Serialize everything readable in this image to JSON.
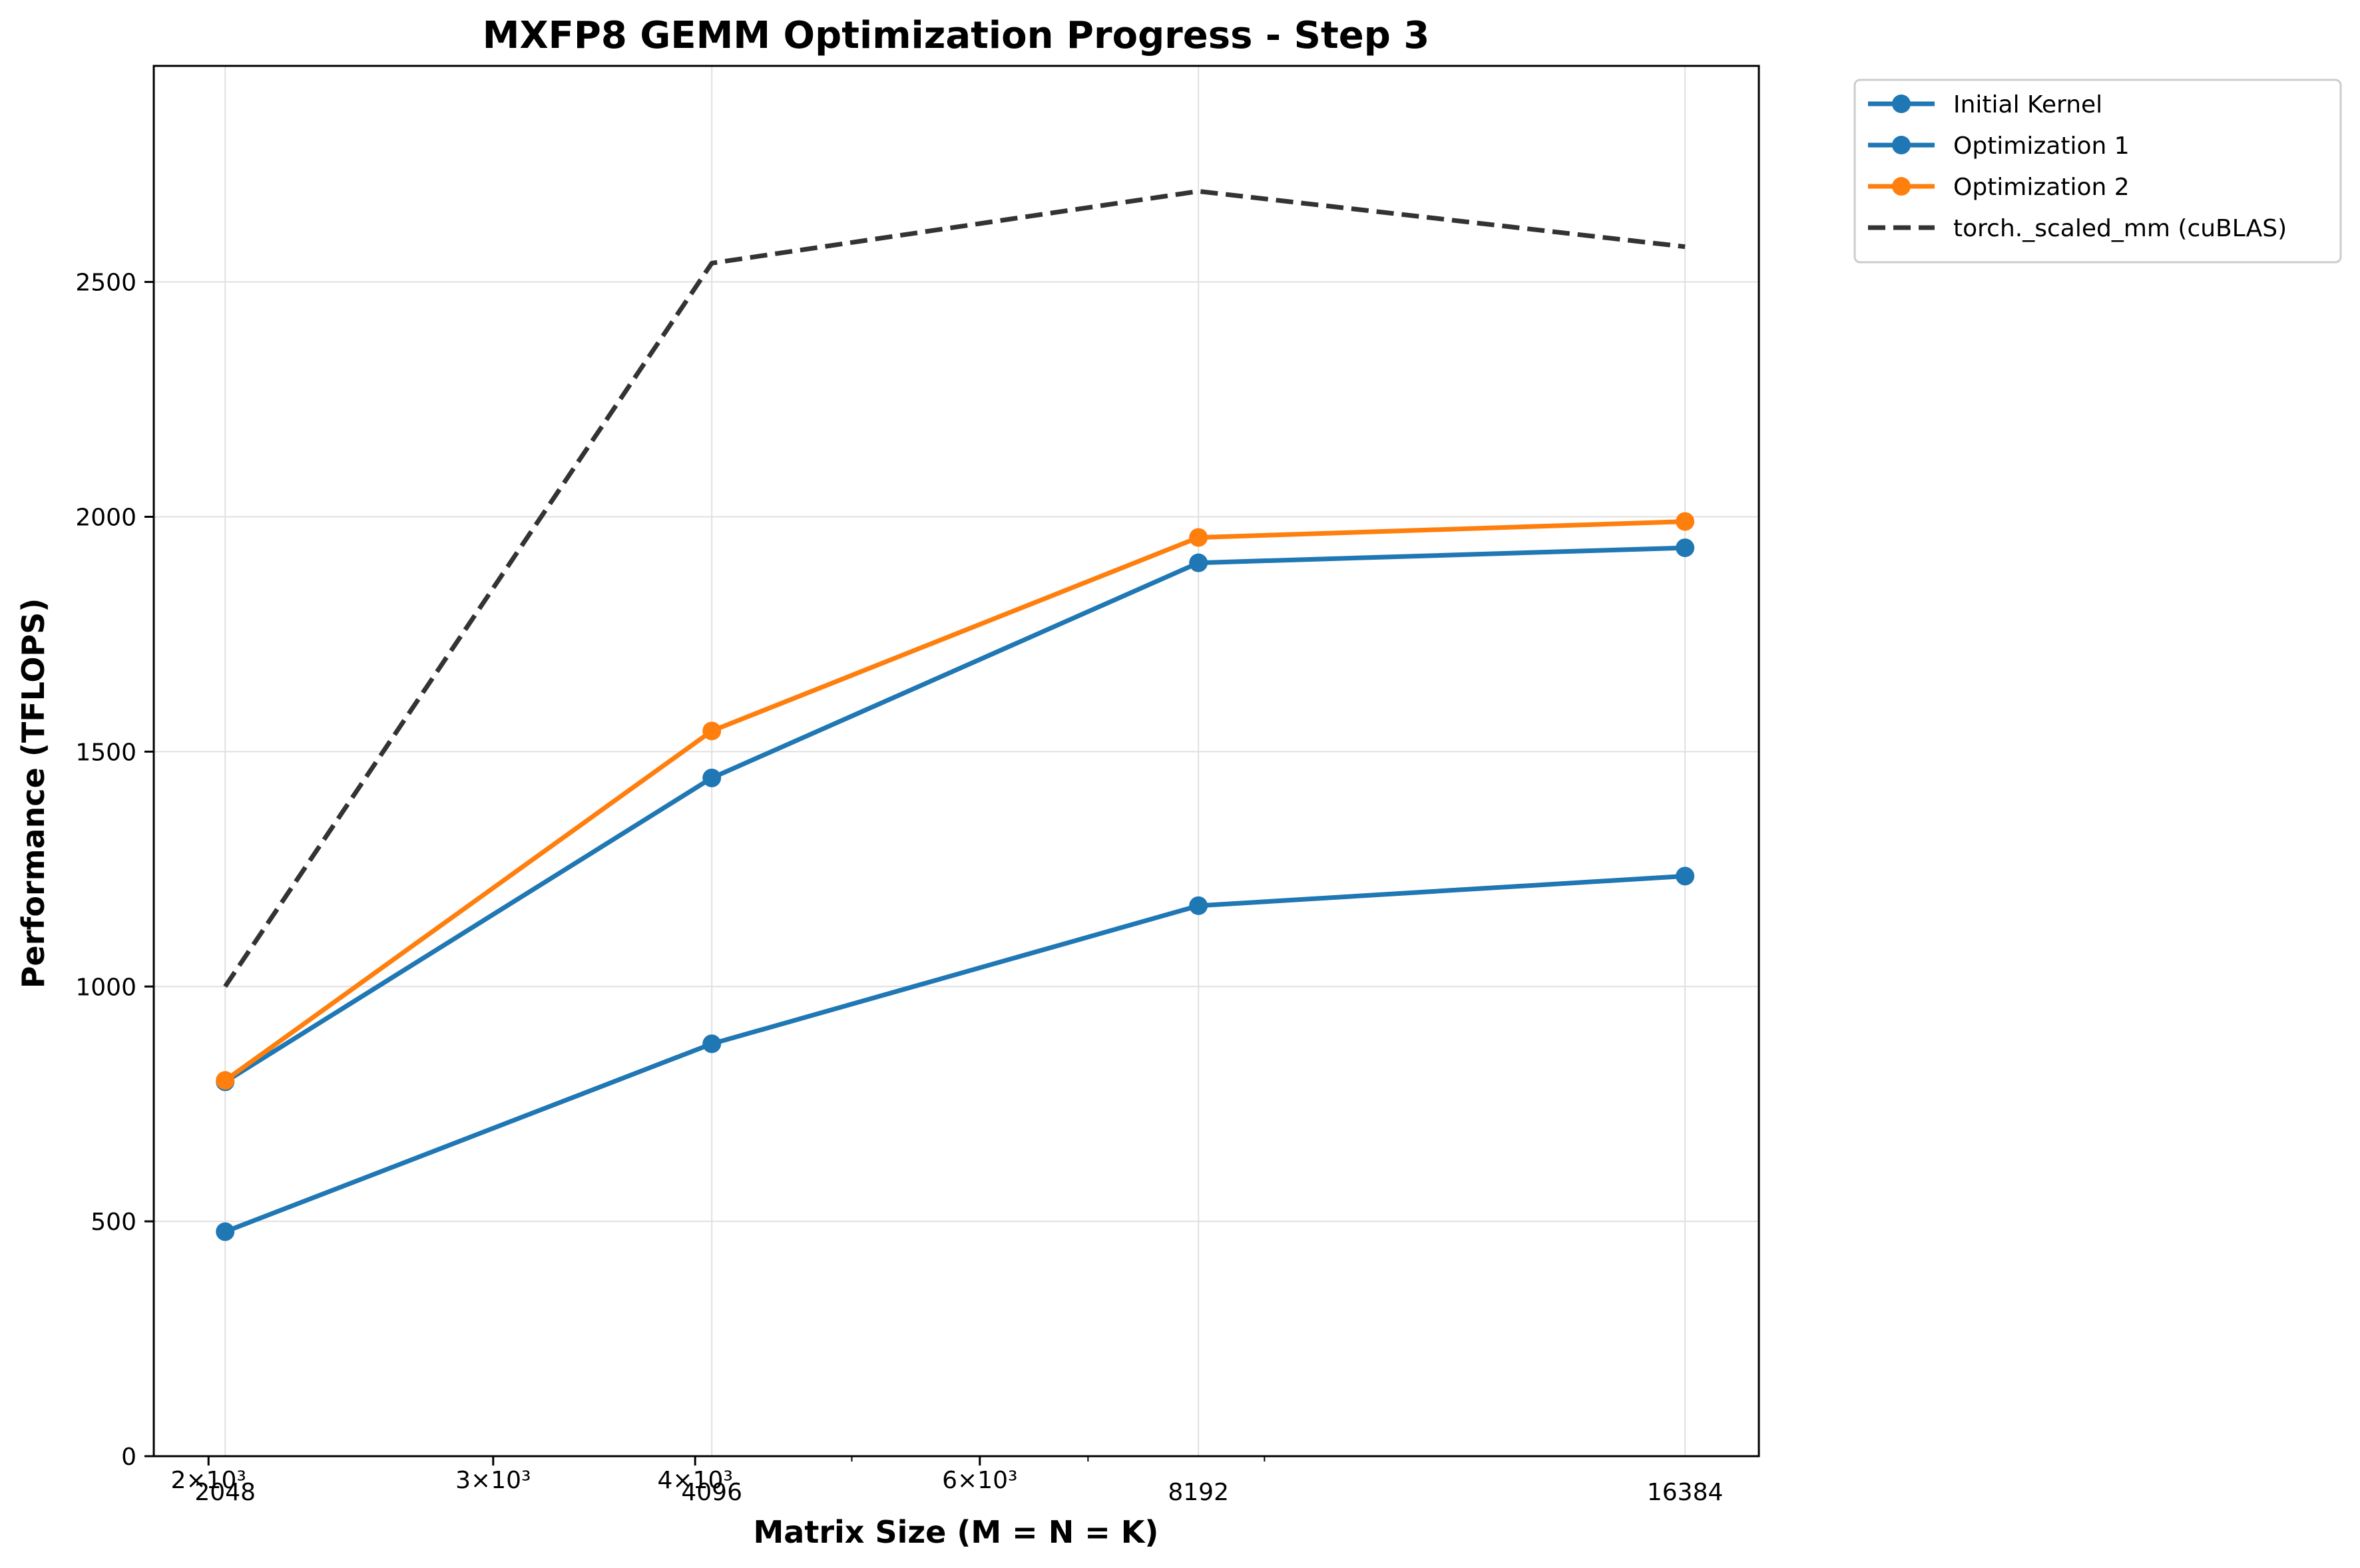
{
  "colors": {
    "blue": "#1f77b4",
    "orange": "#ff7f0e",
    "dark": "#333333",
    "grid": "#e0e0e0"
  },
  "chart_data": {
    "type": "line",
    "title": "MXFP8 GEMM Optimization Progress - Step 3",
    "xlabel": "Matrix Size (M = N = K)",
    "ylabel": "Performance (TFLOPS)",
    "x_scale": "log",
    "xlim": [
      1850,
      18200
    ],
    "ylim": [
      0,
      2960
    ],
    "grid": true,
    "legend_position": "outside-top-right",
    "x": [
      2048,
      4096,
      8192,
      16384
    ],
    "x_tick_labels": [
      "2048",
      "4096",
      "8192",
      "16384"
    ],
    "x_log_tick_labels": [
      {
        "value": 2000,
        "label": "2×10³"
      },
      {
        "value": 3000,
        "label": "3×10³"
      },
      {
        "value": 4000,
        "label": "4×10³"
      },
      {
        "value": 6000,
        "label": "6×10³"
      }
    ],
    "x_minor_ticks": [
      5000,
      7000,
      9000
    ],
    "y_ticks": [
      0,
      500,
      1000,
      1500,
      2000,
      2500
    ],
    "series": [
      {
        "name": "Initial Kernel",
        "color": "#1f77b4",
        "style": "solid",
        "marker": true,
        "values": [
          478,
          878,
          1172,
          1235
        ]
      },
      {
        "name": "Optimization 1",
        "color": "#1f77b4",
        "style": "solid",
        "marker": true,
        "values": [
          797,
          1444,
          1902,
          1934
        ]
      },
      {
        "name": "Optimization 2",
        "color": "#ff7f0e",
        "style": "solid",
        "marker": true,
        "values": [
          800,
          1544,
          1956,
          1990
        ]
      },
      {
        "name": "torch._scaled_mm (cuBLAS)",
        "color": "#333333",
        "style": "dashed",
        "marker": false,
        "values": [
          1000,
          2540,
          2693,
          2575
        ]
      }
    ]
  }
}
